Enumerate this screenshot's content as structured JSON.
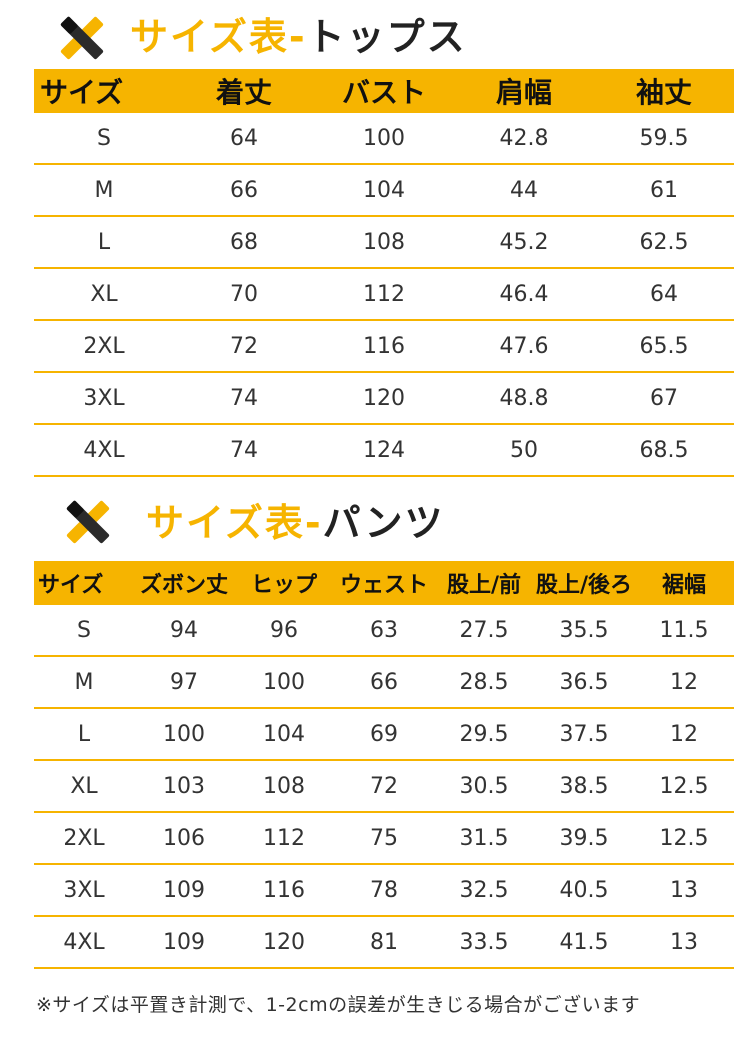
{
  "tops": {
    "title_accent": "サイズ表-",
    "title_rest": "トップス",
    "icon": "crossed-tools-icon",
    "headers": [
      "サイズ",
      "着丈",
      "バスト",
      "肩幅",
      "袖丈"
    ],
    "rows": [
      [
        "S",
        "64",
        "100",
        "42.8",
        "59.5"
      ],
      [
        "M",
        "66",
        "104",
        "44",
        "61"
      ],
      [
        "L",
        "68",
        "108",
        "45.2",
        "62.5"
      ],
      [
        "XL",
        "70",
        "112",
        "46.4",
        "64"
      ],
      [
        "2XL",
        "72",
        "116",
        "47.6",
        "65.5"
      ],
      [
        "3XL",
        "74",
        "120",
        "48.8",
        "67"
      ],
      [
        "4XL",
        "74",
        "124",
        "50",
        "68.5"
      ]
    ]
  },
  "pants": {
    "title_accent": "サイズ表-",
    "title_rest": "パンツ",
    "icon": "crossed-tools-icon",
    "headers": [
      "サイズ",
      "ズボン丈",
      "ヒップ",
      "ウェスト",
      "股上/前",
      "股上/後ろ",
      "裾幅"
    ],
    "rows": [
      [
        "S",
        "94",
        "96",
        "63",
        "27.5",
        "35.5",
        "11.5"
      ],
      [
        "M",
        "97",
        "100",
        "66",
        "28.5",
        "36.5",
        "12"
      ],
      [
        "L",
        "100",
        "104",
        "69",
        "29.5",
        "37.5",
        "12"
      ],
      [
        "XL",
        "103",
        "108",
        "72",
        "30.5",
        "38.5",
        "12.5"
      ],
      [
        "2XL",
        "106",
        "112",
        "75",
        "31.5",
        "39.5",
        "12.5"
      ],
      [
        "3XL",
        "109",
        "116",
        "78",
        "32.5",
        "40.5",
        "13"
      ],
      [
        "4XL",
        "109",
        "120",
        "81",
        "33.5",
        "41.5",
        "13"
      ]
    ]
  },
  "footnote": "※サイズは平置き計測で、1-2cmの誤差が生きじる場合がございます",
  "colors": {
    "accent": "#f6b400",
    "text": "#333333"
  }
}
